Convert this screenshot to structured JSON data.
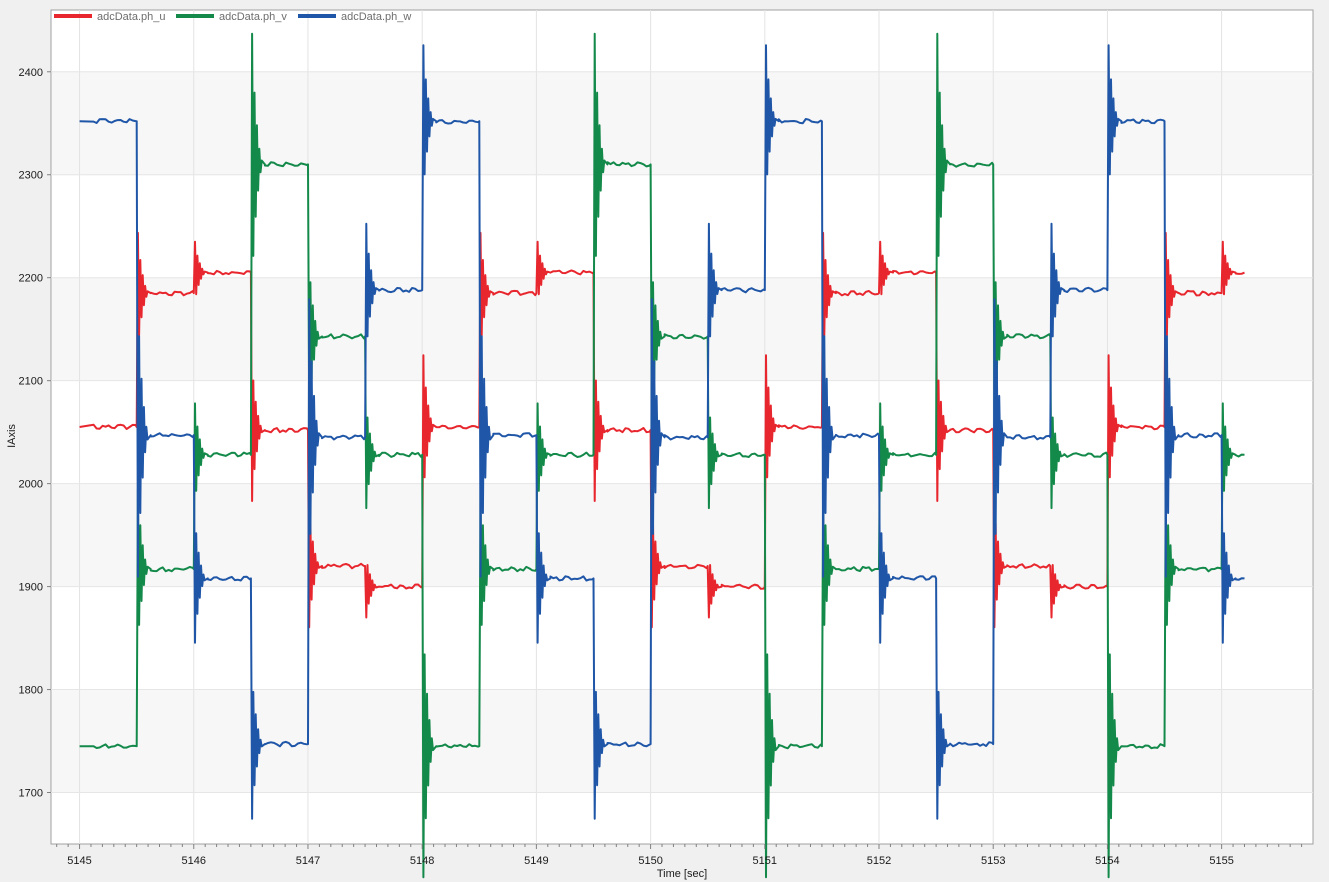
{
  "chart_data": {
    "type": "line",
    "title": "",
    "xlabel": "Time [sec]",
    "ylabel": "IAxis",
    "xlim": [
      5144.75,
      5155.8
    ],
    "ylim": [
      1650,
      2460
    ],
    "x_ticks": [
      5145,
      5146,
      5147,
      5148,
      5149,
      5150,
      5151,
      5152,
      5153,
      5154,
      5155
    ],
    "x_tick_labels": [
      "5145",
      "5146",
      "5147",
      "5148",
      "5149",
      "5150",
      "5151",
      "5152",
      "5153",
      "5154",
      "5155"
    ],
    "y_ticks": [
      1700,
      1800,
      1900,
      2000,
      2100,
      2200,
      2300,
      2400
    ],
    "y_tick_labels": [
      "1700",
      "1800",
      "1900",
      "2000",
      "2100",
      "2200",
      "2300",
      "2400"
    ],
    "grid": true,
    "legend_position": "top-left",
    "period_sec": 3.0,
    "series": [
      {
        "name": "adcData.ph_u",
        "color": "#e8262d",
        "x": [
          5145.0,
          5145.5,
          5145.5,
          5146.0,
          5146.0,
          5146.5,
          5146.5,
          5147.0,
          5147.0,
          5147.5,
          5147.5,
          5148.0,
          5148.0,
          5148.5,
          5148.5,
          5149.0,
          5149.0,
          5149.5,
          5149.5,
          5150.0,
          5150.0,
          5150.5,
          5150.5,
          5151.0,
          5151.0,
          5151.5,
          5151.5,
          5152.0,
          5152.0,
          5152.5,
          5152.5,
          5153.0,
          5153.0,
          5153.5,
          5153.5,
          5154.0,
          5154.0,
          5154.5,
          5154.5,
          5155.0,
          5155.0,
          5155.2
        ],
        "values": [
          2055,
          2055,
          2185,
          2185,
          2205,
          2205,
          2052,
          2052,
          1920,
          1920,
          1900,
          1900,
          2055,
          2055,
          2185,
          2185,
          2205,
          2205,
          2052,
          2052,
          1920,
          1920,
          1900,
          1900,
          2055,
          2055,
          2185,
          2185,
          2205,
          2205,
          2052,
          2052,
          1920,
          1920,
          1900,
          1900,
          2055,
          2055,
          2185,
          2185,
          2205,
          2205
        ]
      },
      {
        "name": "adcData.ph_v",
        "color": "#13894a",
        "x": [
          5145.0,
          5145.5,
          5145.5,
          5146.0,
          5146.0,
          5146.5,
          5146.5,
          5147.0,
          5147.0,
          5147.5,
          5147.5,
          5148.0,
          5148.0,
          5148.5,
          5148.5,
          5149.0,
          5149.0,
          5149.5,
          5149.5,
          5150.0,
          5150.0,
          5150.5,
          5150.5,
          5151.0,
          5151.0,
          5151.5,
          5151.5,
          5152.0,
          5152.0,
          5152.5,
          5152.5,
          5153.0,
          5153.0,
          5153.5,
          5153.5,
          5154.0,
          5154.0,
          5154.5,
          5154.5,
          5155.0,
          5155.0,
          5155.2
        ],
        "values": [
          1745,
          1745,
          1917,
          1917,
          2028,
          2028,
          2310,
          2310,
          2143,
          2143,
          2028,
          2028,
          1745,
          1745,
          1917,
          1917,
          2028,
          2028,
          2310,
          2310,
          2143,
          2143,
          2028,
          2028,
          1745,
          1745,
          1917,
          1917,
          2028,
          2028,
          2310,
          2310,
          2143,
          2143,
          2028,
          2028,
          1745,
          1745,
          1917,
          1917,
          2028,
          2028
        ]
      },
      {
        "name": "adcData.ph_w",
        "color": "#1f56a7",
        "x": [
          5145.0,
          5145.5,
          5145.5,
          5146.0,
          5146.0,
          5146.5,
          5146.5,
          5147.0,
          5147.0,
          5147.5,
          5147.5,
          5148.0,
          5148.0,
          5148.5,
          5148.5,
          5149.0,
          5149.0,
          5149.5,
          5149.5,
          5150.0,
          5150.0,
          5150.5,
          5150.5,
          5151.0,
          5151.0,
          5151.5,
          5151.5,
          5152.0,
          5152.0,
          5152.5,
          5152.5,
          5153.0,
          5153.0,
          5153.5,
          5153.5,
          5154.0,
          5154.0,
          5154.5,
          5154.5,
          5155.0,
          5155.0,
          5155.2
        ],
        "values": [
          2352,
          2352,
          2047,
          2047,
          1908,
          1908,
          1747,
          1747,
          2045,
          2045,
          2188,
          2188,
          2352,
          2352,
          2047,
          2047,
          1908,
          1908,
          1747,
          1747,
          2045,
          2045,
          2188,
          2188,
          2352,
          2352,
          2047,
          2047,
          1908,
          1908,
          1747,
          1747,
          2045,
          2045,
          2188,
          2188,
          2352,
          2352,
          2047,
          2047,
          1908,
          1908
        ]
      }
    ]
  }
}
